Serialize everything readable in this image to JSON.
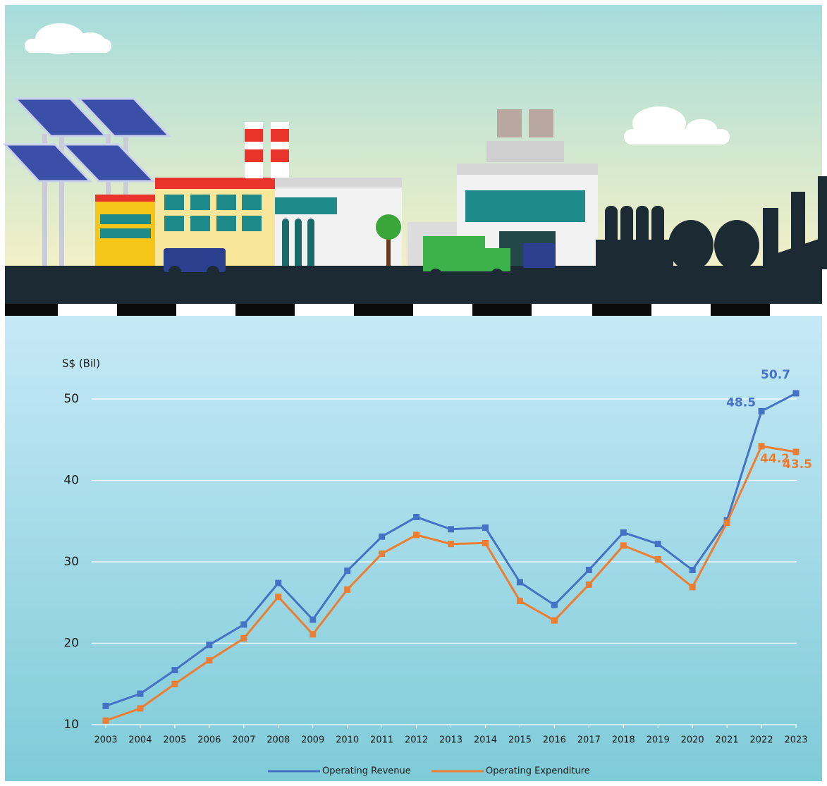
{
  "chart_data": {
    "type": "line",
    "y_label": "S$ (Bil)",
    "categories": [
      "2003",
      "2004",
      "2005",
      "2006",
      "2007",
      "2008",
      "2009",
      "2010",
      "2011",
      "2012",
      "2013",
      "2014",
      "2015",
      "2016",
      "2017",
      "2018",
      "2019",
      "2020",
      "2021",
      "2022",
      "2023"
    ],
    "series": [
      {
        "name": "Operating Revenue",
        "color": "#4472c4",
        "values": [
          12.3,
          13.8,
          16.7,
          19.8,
          22.3,
          27.4,
          22.9,
          28.9,
          33.1,
          35.5,
          34.0,
          34.2,
          27.5,
          24.7,
          29.0,
          33.6,
          32.2,
          29.0,
          35.1,
          48.5,
          50.7
        ],
        "value_labels": [
          null,
          null,
          null,
          null,
          null,
          null,
          null,
          null,
          null,
          null,
          null,
          null,
          null,
          null,
          null,
          null,
          null,
          null,
          null,
          "48.5",
          "50.7"
        ]
      },
      {
        "name": "Operating Expenditure",
        "color": "#ed7d31",
        "values": [
          10.5,
          12.0,
          15.0,
          17.9,
          20.6,
          25.7,
          21.1,
          26.6,
          31.0,
          33.3,
          32.2,
          32.3,
          25.2,
          22.8,
          27.2,
          32.0,
          30.3,
          26.9,
          34.8,
          44.2,
          43.5
        ],
        "value_labels": [
          null,
          null,
          null,
          null,
          null,
          null,
          null,
          null,
          null,
          null,
          null,
          null,
          null,
          null,
          null,
          null,
          null,
          null,
          null,
          "44.2",
          "43.5"
        ]
      }
    ],
    "ylim": [
      10,
      50
    ],
    "yticks": [
      10,
      20,
      30,
      40,
      50
    ],
    "grid": true,
    "legend": "bottom"
  }
}
